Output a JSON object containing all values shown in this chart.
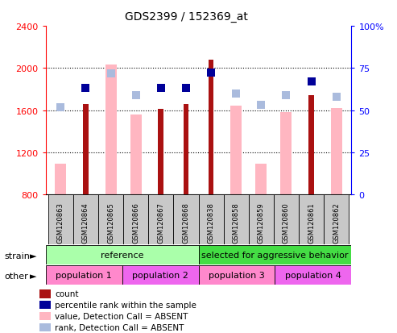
{
  "title": "GDS2399 / 152369_at",
  "samples": [
    "GSM120863",
    "GSM120864",
    "GSM120865",
    "GSM120866",
    "GSM120867",
    "GSM120868",
    "GSM120838",
    "GSM120858",
    "GSM120859",
    "GSM120860",
    "GSM120861",
    "GSM120862"
  ],
  "count_values": [
    null,
    1660,
    null,
    null,
    1610,
    1660,
    2080,
    null,
    null,
    null,
    1740,
    null
  ],
  "absent_value_values": [
    1090,
    null,
    2030,
    1560,
    null,
    null,
    null,
    1640,
    1090,
    1580,
    null,
    1620
  ],
  "percentile_rank_present": [
    null,
    1810,
    null,
    null,
    1810,
    1810,
    1960,
    null,
    null,
    null,
    1870,
    null
  ],
  "percentile_rank_absent": [
    1625,
    null,
    1950,
    1740,
    null,
    null,
    null,
    1760,
    1650,
    1740,
    null,
    1725
  ],
  "ymin": 800,
  "ymax": 2400,
  "yticks_left": [
    800,
    1200,
    1600,
    2000,
    2400
  ],
  "yticks_right": [
    0,
    25,
    50,
    75,
    100
  ],
  "yticks_right_pos": [
    800,
    1200,
    1600,
    2000,
    2400
  ],
  "strain_groups": [
    {
      "label": "reference",
      "start": 0,
      "end": 6,
      "color": "#aaffaa"
    },
    {
      "label": "selected for aggressive behavior",
      "start": 6,
      "end": 12,
      "color": "#44dd44"
    }
  ],
  "other_groups": [
    {
      "label": "population 1",
      "start": 0,
      "end": 3,
      "color": "#ff88cc"
    },
    {
      "label": "population 2",
      "start": 3,
      "end": 6,
      "color": "#ee66ee"
    },
    {
      "label": "population 3",
      "start": 6,
      "end": 9,
      "color": "#ff88cc"
    },
    {
      "label": "population 4",
      "start": 9,
      "end": 12,
      "color": "#ee66ee"
    }
  ],
  "count_color": "#AA1111",
  "absent_value_color": "#FFB6C1",
  "rank_present_color": "#000099",
  "rank_absent_color": "#AABBDD",
  "legend_items": [
    {
      "label": "count",
      "color": "#AA1111"
    },
    {
      "label": "percentile rank within the sample",
      "color": "#000099"
    },
    {
      "label": "value, Detection Call = ABSENT",
      "color": "#FFB6C1"
    },
    {
      "label": "rank, Detection Call = ABSENT",
      "color": "#AABBDD"
    }
  ]
}
